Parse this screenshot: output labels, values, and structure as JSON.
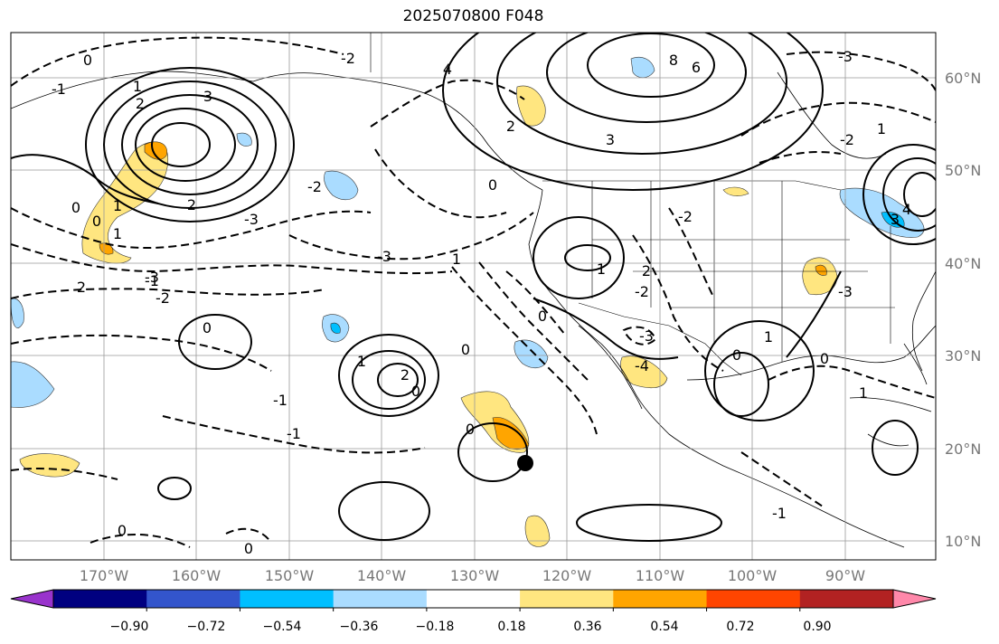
{
  "title": "2025070800 F048",
  "lat_labels": [
    "60°N",
    "50°N",
    "40°N",
    "30°N",
    "20°N",
    "10°N"
  ],
  "lon_labels": [
    "170°W",
    "160°W",
    "150°W",
    "140°W",
    "130°W",
    "120°W",
    "110°W",
    "100°W",
    "90°W"
  ],
  "colorbar": {
    "colors": [
      "#9933cc",
      "#000080",
      "#3355cc",
      "#00bfff",
      "#aadcff",
      "#ffffff",
      "#ffe680",
      "#ffa500",
      "#ff4500",
      "#b22222",
      "#ff88aa"
    ],
    "tick_labels": [
      "−0.90",
      "−0.72",
      "−0.54",
      "−0.36",
      "−0.18",
      "0.18",
      "0.36",
      "0.54",
      "0.72",
      "0.90"
    ]
  },
  "contour_labels": [
    "0",
    "-1",
    "1",
    "2",
    "3",
    "4",
    "-2",
    "-3",
    "6",
    "8",
    "0",
    "2",
    "3",
    "1",
    "2",
    "-2",
    "-3",
    "-3",
    "0",
    "1",
    "2",
    "0",
    "0",
    "-1",
    "0",
    "0",
    "-1",
    "-2",
    "0",
    "1",
    "-3",
    "0",
    "1",
    "2",
    "-2",
    "-4",
    "-2",
    "2",
    "3",
    "4",
    "1",
    "0",
    "0",
    "-2",
    "-3",
    "1",
    "-1",
    "-1",
    "-3",
    "1",
    "0",
    "0",
    "1"
  ]
}
